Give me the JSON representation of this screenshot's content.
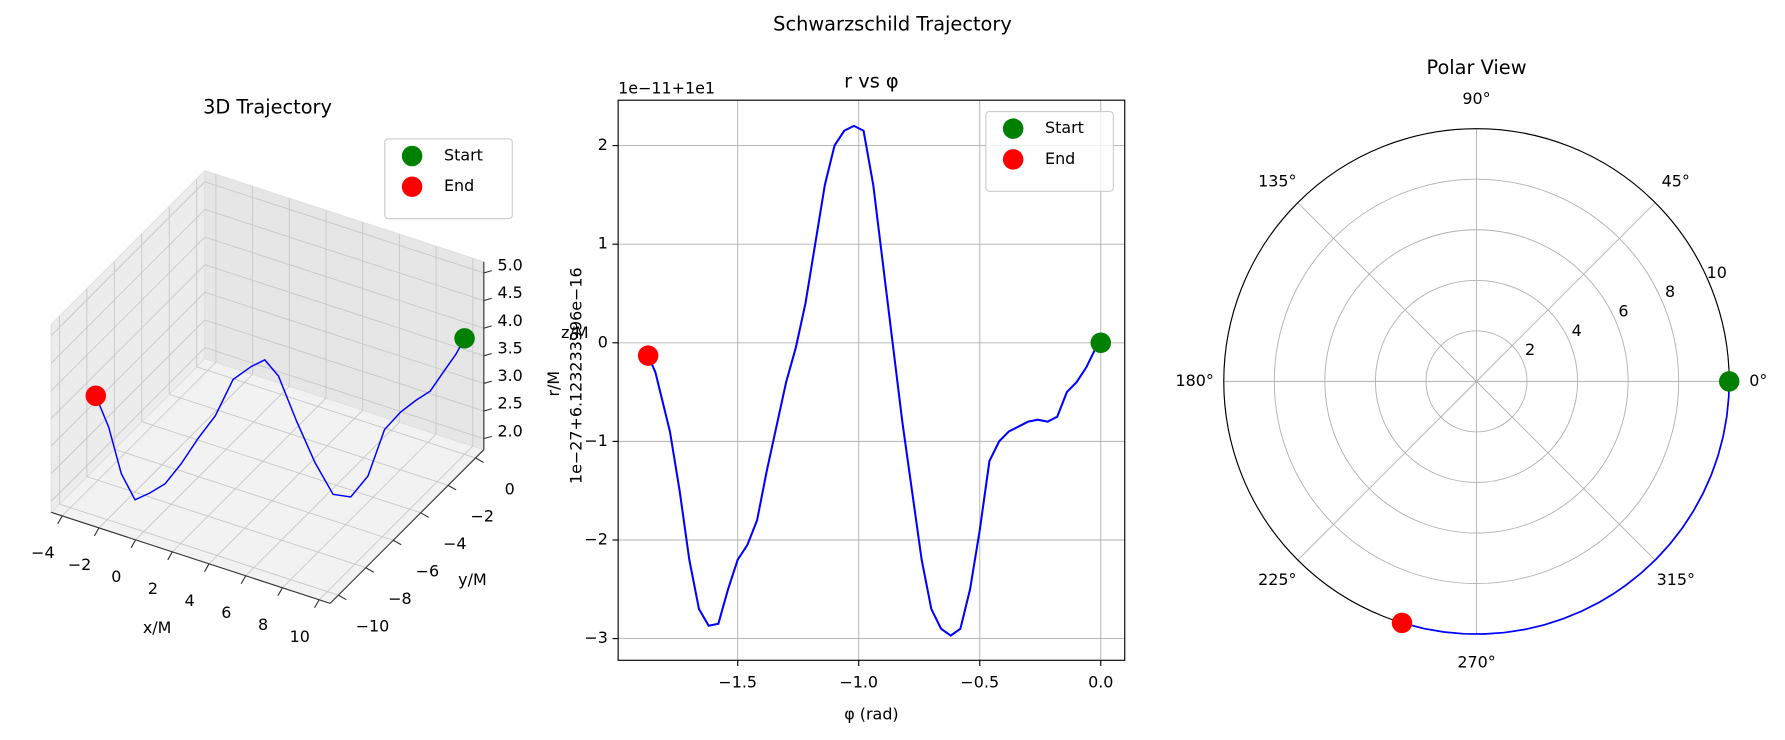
{
  "title": "Schwarzschild Trajectory",
  "chart_data": [
    {
      "type": "line3d",
      "title": "3D Trajectory",
      "xlabel": "x/M",
      "ylabel": "y/M",
      "zlabel": "z/M",
      "xlim": [
        -4.6,
        10.6
      ],
      "ylim": [
        -10.6,
        0.6
      ],
      "zlim": [
        1.8,
        5.2
      ],
      "xticks": [
        {
          "value": -4,
          "label": "−4"
        },
        {
          "value": -2,
          "label": "−2"
        },
        0,
        2,
        4,
        6,
        8,
        10
      ],
      "yticks": [
        0,
        {
          "value": -2,
          "label": "−2"
        },
        {
          "value": -4,
          "label": "−4"
        },
        {
          "value": -6,
          "label": "−6"
        },
        {
          "value": -8,
          "label": "−8"
        },
        {
          "value": -10,
          "label": "−10"
        }
      ],
      "zticks": [
        {
          "value": 2,
          "label": "2.0"
        },
        2.5,
        {
          "value": 3,
          "label": "3.0"
        },
        3.5,
        {
          "value": 4,
          "label": "4.0"
        },
        4.5,
        {
          "value": 5,
          "label": "5.0"
        }
      ],
      "legend": "upper right",
      "series": [
        {
          "mode": "line",
          "color": "blue",
          "x": [
            -2.95,
            -2.08,
            -1.29,
            -0.49,
            0.31,
            1.11,
            1.9,
            2.67,
            3.44,
            4.18,
            4.89,
            5.4,
            5.9,
            6.52,
            7.11,
            7.65,
            8.14,
            8.58,
            8.96,
            9.29,
            9.55,
            9.76,
            9.9,
            9.98,
            10
          ],
          "y": [
            -9.56,
            -9.78,
            -9.92,
            -9.99,
            -10.0,
            -9.94,
            -9.82,
            -9.64,
            -9.39,
            -9.09,
            -8.72,
            -8.41,
            -8.08,
            -7.58,
            -7.03,
            -6.44,
            -5.81,
            -5.14,
            -4.44,
            -3.71,
            -2.96,
            -2.18,
            -1.4,
            -0.6,
            0
          ],
          "z": [
            3.83,
            3.41,
            2.69,
            2.32,
            2.53,
            2.77,
            3.19,
            3.68,
            4.12,
            4.78,
            5.0,
            5.1,
            4.78,
            3.9,
            3.08,
            2.42,
            2.27,
            2.53,
            3.24,
            3.41,
            3.46,
            3.46,
            3.63,
            3.76,
            3.9
          ]
        },
        {
          "mode": "markers",
          "name": "Start",
          "color": "green",
          "x": [
            10
          ],
          "y": [
            0
          ],
          "z": [
            3.9
          ]
        },
        {
          "mode": "markers",
          "name": "End",
          "color": "red",
          "x": [
            -2.95
          ],
          "y": [
            -9.56
          ],
          "z": [
            3.83
          ]
        }
      ]
    },
    {
      "type": "line",
      "title": "r vs φ",
      "xlabel": "φ (rad)",
      "ylabel": "r/M",
      "offset_text": "1e−11+1e1",
      "annotation": "1e−27+6.123233996e−16",
      "xlim": [
        -1.994,
        0.099
      ],
      "ylim": [
        -3.22,
        2.46
      ],
      "grid": true,
      "legend": "upper right",
      "xticks": [
        {
          "value": -1.5,
          "label": "−1.5"
        },
        {
          "value": -1.0,
          "label": "−1.0"
        },
        {
          "value": -0.5,
          "label": "−0.5"
        },
        {
          "value": 0,
          "label": "0.0"
        }
      ],
      "yticks": [
        {
          "value": -3,
          "label": "−3"
        },
        {
          "value": -2,
          "label": "−2"
        },
        {
          "value": -1,
          "label": "−1"
        },
        0,
        1,
        2
      ],
      "x": [
        -1.87,
        -1.84,
        -1.82,
        -1.78,
        -1.74,
        -1.7,
        -1.66,
        -1.62,
        -1.58,
        -1.54,
        -1.5,
        -1.46,
        -1.42,
        -1.38,
        -1.34,
        -1.3,
        -1.26,
        -1.22,
        -1.18,
        -1.14,
        -1.1,
        -1.06,
        -1.02,
        -0.98,
        -0.94,
        -0.9,
        -0.86,
        -0.82,
        -0.78,
        -0.74,
        -0.7,
        -0.66,
        -0.62,
        -0.58,
        -0.54,
        -0.5,
        -0.46,
        -0.42,
        -0.38,
        -0.34,
        -0.3,
        -0.26,
        -0.22,
        -0.18,
        -0.14,
        -0.1,
        -0.06,
        -0.02,
        0
      ],
      "series": [
        {
          "mode": "line",
          "color": "blue",
          "values": [
            -0.13,
            -0.3,
            -0.5,
            -0.9,
            -1.5,
            -2.2,
            -2.7,
            -2.87,
            -2.85,
            -2.5,
            -2.2,
            -2.05,
            -1.8,
            -1.3,
            -0.85,
            -0.4,
            -0.05,
            0.4,
            1.0,
            1.6,
            2.0,
            2.15,
            2.2,
            2.15,
            1.6,
            0.8,
            0.0,
            -0.8,
            -1.5,
            -2.2,
            -2.7,
            -2.9,
            -2.97,
            -2.9,
            -2.5,
            -1.9,
            -1.2,
            -1.0,
            -0.9,
            -0.85,
            -0.8,
            -0.78,
            -0.8,
            -0.75,
            -0.5,
            -0.4,
            -0.25,
            -0.05,
            0
          ]
        },
        {
          "mode": "markers",
          "name": "Start",
          "color": "green",
          "x": [
            0
          ],
          "values": [
            0
          ]
        },
        {
          "mode": "markers",
          "name": "End",
          "color": "red",
          "x": [
            -1.87
          ],
          "values": [
            -0.13
          ]
        }
      ]
    },
    {
      "type": "polar",
      "title": "Polar View",
      "rlim": [
        0,
        10
      ],
      "rticks": [
        2,
        4,
        6,
        8,
        10
      ],
      "thetaticks": [
        {
          "value": 0,
          "label": "0°"
        },
        {
          "value": 45,
          "label": "45°"
        },
        {
          "value": 90,
          "label": "90°"
        },
        {
          "value": 135,
          "label": "135°"
        },
        {
          "value": 180,
          "label": "180°"
        },
        {
          "value": 225,
          "label": "225°"
        },
        {
          "value": 270,
          "label": "270°"
        },
        {
          "value": 315,
          "label": "315°"
        }
      ],
      "series": [
        {
          "mode": "line",
          "color": "blue",
          "theta": [
            -1.87,
            -1.78,
            -1.7,
            -1.62,
            -1.54,
            -1.46,
            -1.38,
            -1.3,
            -1.22,
            -1.14,
            -1.06,
            -1.0,
            -0.94,
            -0.86,
            -0.78,
            -0.7,
            -0.62,
            -0.54,
            -0.46,
            -0.38,
            -0.3,
            -0.22,
            -0.14,
            -0.06,
            0
          ],
          "r": [
            10,
            10,
            10,
            10,
            10,
            10,
            10,
            10,
            10,
            10,
            10,
            10,
            10,
            10,
            10,
            10,
            10,
            10,
            10,
            10,
            10,
            10,
            10,
            10,
            10
          ]
        },
        {
          "mode": "markers",
          "name": "Start",
          "color": "green",
          "theta": [
            0
          ],
          "r": [
            10
          ]
        },
        {
          "mode": "markers",
          "name": "End",
          "color": "red",
          "theta": [
            -1.87
          ],
          "r": [
            10
          ]
        }
      ]
    }
  ]
}
